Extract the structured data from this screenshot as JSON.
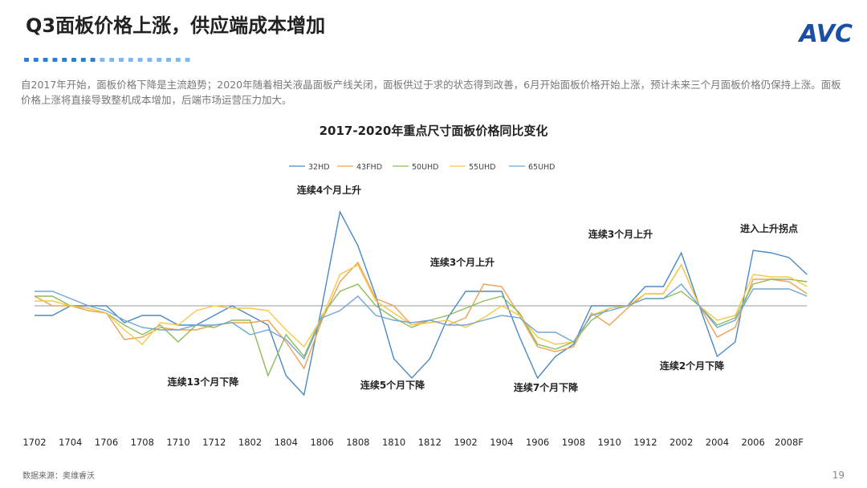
{
  "header": {
    "title": "Q3面板价格上涨，供应端成本增加",
    "logo": "AVC"
  },
  "description": "自2017年开始，面板价格下降是主流趋势；2020年随着相关液晶面板产线关闭，面板供过于求的状态得到改善，6月开始面板价格开始上涨，预计未来三个月面板价格仍保持上涨。面板价格上涨将直接导致整机成本增加，后端市场运营压力加大。",
  "chart_data": {
    "type": "line",
    "title": "2017-2020年重点尺寸面板价格同比变化",
    "categories": [
      "1702",
      null,
      "1704",
      null,
      "1706",
      null,
      "1708",
      null,
      "1710",
      null,
      "1712",
      null,
      "1802",
      null,
      "1804",
      null,
      "1806",
      null,
      "1808",
      null,
      "1810",
      null,
      "1812",
      null,
      "1902",
      null,
      "1904",
      null,
      "1906",
      null,
      "1908",
      null,
      "1910",
      null,
      "1912",
      null,
      "2002",
      null,
      "2004",
      null,
      "2006",
      null,
      "2008F",
      null
    ],
    "ylim": [
      -40,
      40
    ],
    "series": [
      {
        "name": "32HD",
        "color": "#4a8ac4",
        "values": [
          -4,
          -4,
          0,
          0,
          0,
          -7,
          -4,
          -4,
          -8,
          -8,
          -4,
          0,
          -4,
          -8,
          -29,
          -37,
          0,
          39,
          25,
          4,
          -22,
          -30,
          -22,
          -5,
          6,
          6,
          6,
          -13,
          -30,
          -21,
          -16,
          0,
          0,
          0,
          8,
          8,
          22,
          0,
          -21,
          -15,
          23,
          22,
          20,
          13
        ]
      },
      {
        "name": "43FHD",
        "color": "#f0a050",
        "values": [
          4,
          0,
          0,
          -2,
          -3,
          -14,
          -13,
          -9,
          -10,
          -10,
          -8,
          -7,
          -7,
          -6,
          -15,
          -26,
          -6,
          10,
          18,
          3,
          0,
          -8,
          -6,
          -8,
          -5,
          9,
          8,
          -4,
          -17,
          -19,
          -17,
          -3,
          -8,
          -1,
          5,
          5,
          17,
          0,
          -13,
          -9,
          11,
          11,
          10,
          5
        ]
      },
      {
        "name": "50UHD",
        "color": "#8cbc5c",
        "values": [
          4,
          4,
          0,
          -1,
          -3,
          -8,
          -12,
          -8,
          -15,
          -8,
          -9,
          -6,
          -6,
          -29,
          -12,
          -21,
          -4,
          6,
          9,
          0,
          -5,
          -9,
          -6,
          -4,
          -1,
          2,
          4,
          -3,
          -16,
          -18,
          -15,
          -6,
          -1,
          0,
          3,
          3,
          6,
          0,
          -8,
          -5,
          9,
          11,
          11,
          10
        ]
      },
      {
        "name": "55UHD",
        "color": "#f7c843",
        "values": [
          2,
          2,
          0,
          -1,
          -3,
          -10,
          -16,
          -7,
          -8,
          -2,
          0,
          -1,
          -1,
          -2,
          -10,
          -17,
          -5,
          13,
          17,
          2,
          -3,
          -8,
          -7,
          -6,
          -9,
          -5,
          0,
          -4,
          -13,
          -16,
          -15,
          -4,
          -1,
          0,
          5,
          5,
          17,
          0,
          -6,
          -4,
          13,
          12,
          12,
          8
        ]
      },
      {
        "name": "65UHD",
        "color": "#6fa6d8",
        "values": [
          6,
          6,
          3,
          0,
          -2,
          -6,
          -9,
          -10,
          -10,
          -8,
          -8,
          -7,
          -12,
          -10,
          -14,
          -22,
          -5,
          -2,
          4,
          -4,
          -6,
          -7,
          -6,
          -8,
          -8,
          -6,
          -4,
          -5,
          -11,
          -11,
          -15,
          -4,
          -2,
          0,
          3,
          3,
          9,
          0,
          -9,
          -6,
          7,
          7,
          7,
          4
        ]
      }
    ],
    "annotations": [
      "连续4个月上升",
      "连续13个月下降",
      "连续5个月下降",
      "连续3个月上升",
      "连续7个月下降",
      "连续3个月上升",
      "连续2个月下降",
      "进入上升拐点"
    ]
  },
  "footer": {
    "source": "数据来源：奥维睿沃",
    "page": "19"
  }
}
